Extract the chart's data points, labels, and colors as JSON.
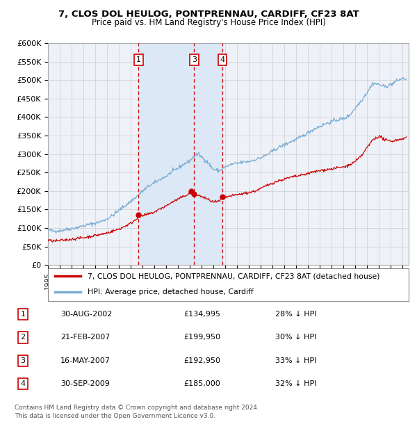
{
  "title1": "7, CLOS DOL HEULOG, PONTPRENNAU, CARDIFF, CF23 8AT",
  "title2": "Price paid vs. HM Land Registry's House Price Index (HPI)",
  "ylim": [
    0,
    600000
  ],
  "xlim_start": 1995.0,
  "xlim_end": 2025.5,
  "background_color": "#ffffff",
  "plot_bg_color": "#eef2f8",
  "grid_color": "#cccccc",
  "hpi_color": "#7aadd4",
  "price_color": "#cc0000",
  "shade_color": "#dce8f5",
  "vline_color": "#cc0000",
  "transactions": [
    {
      "id": 1,
      "date_num": 2002.66,
      "price": 134995,
      "label": "1",
      "show_vline": true
    },
    {
      "id": 2,
      "date_num": 2007.12,
      "price": 199950,
      "label": "2",
      "show_vline": false
    },
    {
      "id": 3,
      "date_num": 2007.37,
      "price": 192950,
      "label": "3",
      "show_vline": true
    },
    {
      "id": 4,
      "date_num": 2009.75,
      "price": 185000,
      "label": "4",
      "show_vline": true
    }
  ],
  "shade_x0": 2002.66,
  "shade_x1": 2009.75,
  "legend_entries": [
    {
      "label": "7, CLOS DOL HEULOG, PONTPRENNAU, CARDIFF, CF23 8AT (detached house)",
      "color": "#cc0000"
    },
    {
      "label": "HPI: Average price, detached house, Cardiff",
      "color": "#7aadd4"
    }
  ],
  "table_rows": [
    {
      "num": 1,
      "date": "30-AUG-2002",
      "price": "£134,995",
      "hpi": "28% ↓ HPI"
    },
    {
      "num": 2,
      "date": "21-FEB-2007",
      "price": "£199,950",
      "hpi": "30% ↓ HPI"
    },
    {
      "num": 3,
      "date": "16-MAY-2007",
      "price": "£192,950",
      "hpi": "33% ↓ HPI"
    },
    {
      "num": 4,
      "date": "30-SEP-2009",
      "price": "£185,000",
      "hpi": "32% ↓ HPI"
    }
  ],
  "footnote": "Contains HM Land Registry data © Crown copyright and database right 2024.\nThis data is licensed under the Open Government Licence v3.0."
}
